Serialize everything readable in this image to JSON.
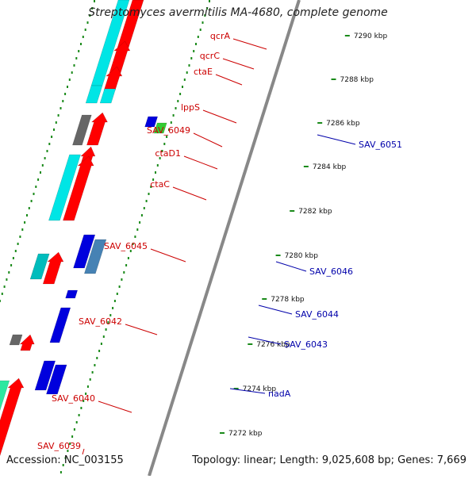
{
  "title": "Streptomyces avermitilis MA-4680, complete genome",
  "footer": {
    "accession": "Accession: NC_003155",
    "topology": "Topology: linear; Length: 9,025,608 bp; Genes: 7,669"
  },
  "colors": {
    "red": "#ff0000",
    "cyan": "#00e5e5",
    "dark_gray": "#666666",
    "blue": "#0000dd",
    "steel_blue": "#4682b4",
    "teal": "#00bcbc",
    "mint": "#2de8a0",
    "green": "#33cc33",
    "forward_label": "#cc0000",
    "reverse_label": "#0000aa",
    "tick": "#1a8a1a",
    "backbone": "#888888"
  },
  "ticks": [
    {
      "label": "7290 kbp"
    },
    {
      "label": "7288 kbp"
    },
    {
      "label": "7286 kbp"
    },
    {
      "label": "7284 kbp"
    },
    {
      "label": "7282 kbp"
    },
    {
      "label": "7280 kbp"
    },
    {
      "label": "7278 kbp"
    },
    {
      "label": "7276 kbp"
    },
    {
      "label": "7274 kbp"
    },
    {
      "label": "7272 kbp"
    }
  ],
  "left_labels": [
    "qcrA",
    "qcrC",
    "ctaE",
    "lppS",
    "SAV_6049",
    "ctaD1",
    "ctaC",
    "SAV_6045",
    "SAV_6042",
    "SAV_6040",
    "SAV_6039"
  ],
  "right_labels": [
    "SAV_6051",
    "SAV_6046",
    "SAV_6044",
    "SAV_6043",
    "nadA"
  ]
}
